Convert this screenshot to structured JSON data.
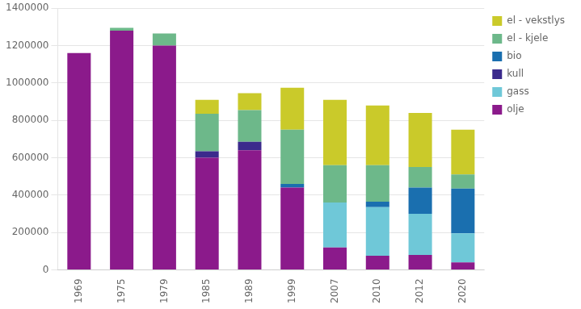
{
  "chart_data": {
    "type": "bar",
    "stacked": true,
    "categories": [
      "1969",
      "1975",
      "1979",
      "1985",
      "1989",
      "1999",
      "2007",
      "2010",
      "2012",
      "2020"
    ],
    "series": [
      {
        "name": "olje",
        "color": "#8B1A8B",
        "values": [
          1160000,
          1280000,
          1200000,
          600000,
          640000,
          440000,
          120000,
          75000,
          80000,
          40000
        ]
      },
      {
        "name": "gass",
        "color": "#6FC8D8",
        "values": [
          0,
          0,
          0,
          0,
          0,
          0,
          240000,
          260000,
          220000,
          155000
        ]
      },
      {
        "name": "kull",
        "color": "#3B2A8C",
        "values": [
          0,
          0,
          0,
          35000,
          45000,
          0,
          0,
          0,
          0,
          0
        ]
      },
      {
        "name": "bio",
        "color": "#1A6FAF",
        "values": [
          0,
          0,
          0,
          0,
          0,
          20000,
          0,
          30000,
          140000,
          240000
        ]
      },
      {
        "name": "el - kjele",
        "color": "#6DB88A",
        "values": [
          0,
          15000,
          65000,
          200000,
          170000,
          290000,
          200000,
          195000,
          110000,
          75000
        ]
      },
      {
        "name": "el - vekstlys",
        "color": "#CACA2A",
        "values": [
          0,
          0,
          0,
          75000,
          90000,
          225000,
          350000,
          320000,
          290000,
          240000
        ]
      }
    ],
    "ylim": [
      0,
      1400000
    ],
    "yticks": [
      0,
      200000,
      400000,
      600000,
      800000,
      1000000,
      1200000,
      1400000
    ],
    "grid": true,
    "legend": "right"
  }
}
